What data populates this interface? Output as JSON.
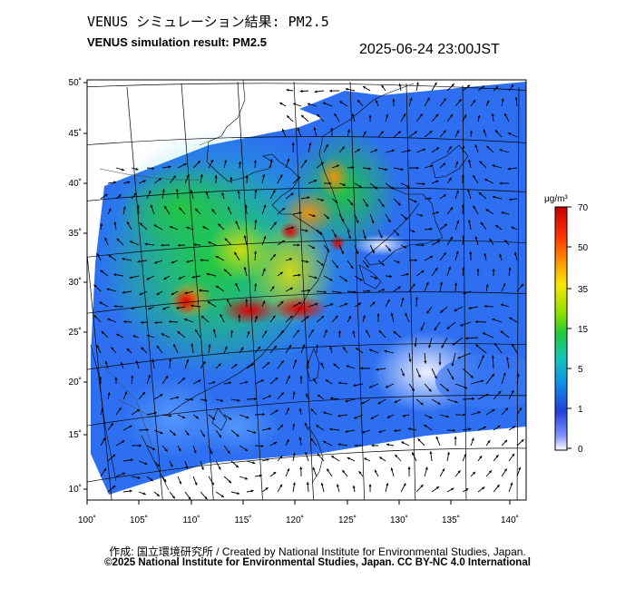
{
  "header": {
    "title_jp": "VENUS シミュレーション結果: PM2.5",
    "title_en": "VENUS simulation result: PM2.5",
    "timestamp": "2025-06-24 23:00JST"
  },
  "map": {
    "lon_range": [
      100,
      142
    ],
    "lat_range": [
      9,
      51
    ],
    "lon_ticks": [
      "100˚",
      "105˚",
      "110˚",
      "115˚",
      "120˚",
      "125˚",
      "130˚",
      "135˚",
      "140˚"
    ],
    "lat_ticks": [
      "50˚",
      "45˚",
      "40˚",
      "35˚",
      "30˚",
      "25˚",
      "20˚",
      "15˚",
      "10˚"
    ],
    "colors": {
      "low": "#e6eaff",
      "light_blue": "#3f84ff",
      "blue": "#2060e0",
      "cyan": "#18c8d0",
      "green": "#22c83a",
      "yellow": "#f0e000",
      "orange": "#ff8000",
      "red": "#e00000",
      "land_missing": "#ffffff"
    }
  },
  "colorbar": {
    "unit": "μg/m³",
    "labels": [
      "70",
      "50",
      "35",
      "15",
      "5",
      "1",
      "0"
    ]
  },
  "footer": {
    "credit_1": "作成: 国立環境研究所 / Created by National Institute for Environmental Studies, Japan.",
    "credit_2": "©2025 National Institute for Environmental Studies, Japan. CC BY-NC 4.0 International"
  }
}
